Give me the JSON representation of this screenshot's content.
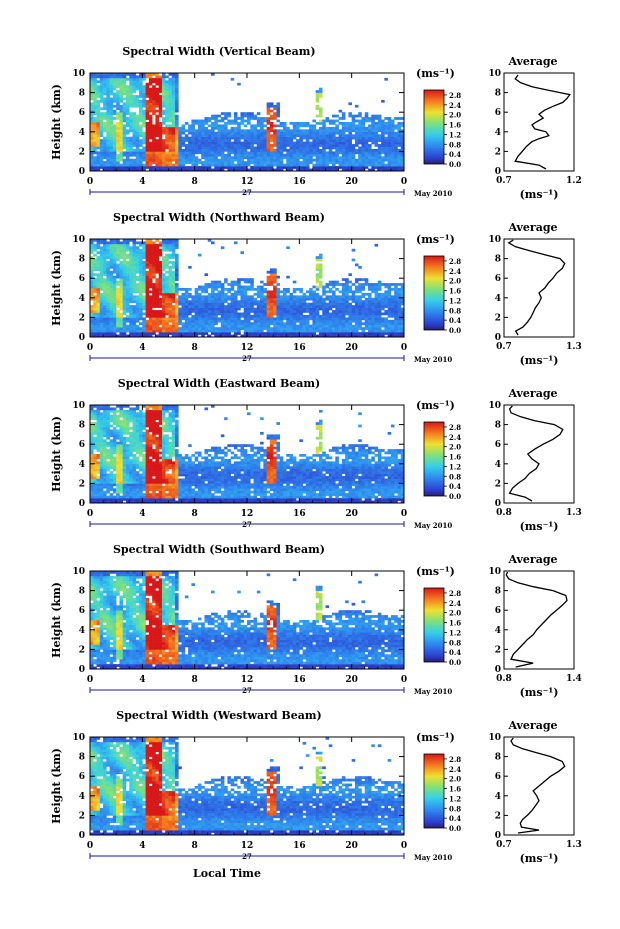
{
  "chart_data": [
    {
      "type": "heatmap",
      "title": "Spectral Width (Vertical Beam)",
      "ylabel": "Height (km)",
      "ylim": [
        0,
        10
      ],
      "yticks": [
        "0",
        "2",
        "4",
        "6",
        "8",
        "10"
      ],
      "xlim": [
        0,
        24
      ],
      "xticks": [
        "0",
        "4",
        "8",
        "12",
        "16",
        "20",
        "0"
      ],
      "day_label": "27",
      "month_label": "May 2010",
      "colorbar": {
        "unit": "(ms⁻¹)",
        "ticks": [
          "0.0",
          "0.4",
          "0.8",
          "1.2",
          "1.6",
          "2.0",
          "2.4",
          "2.8"
        ],
        "range": [
          0,
          3.0
        ]
      },
      "profile": {
        "title": "Average",
        "xlabel": "(ms⁻¹)",
        "xticks": [
          "0.7",
          "1.2"
        ],
        "xlim": [
          0.7,
          1.2
        ],
        "ylim": [
          0,
          10
        ],
        "yticks": [
          "0",
          "2",
          "4",
          "6",
          "8",
          "10"
        ],
        "points": [
          [
            0.2,
            1.0
          ],
          [
            0.6,
            0.95
          ],
          [
            1.0,
            0.78
          ],
          [
            1.5,
            0.8
          ],
          [
            2.0,
            0.83
          ],
          [
            2.5,
            0.86
          ],
          [
            3.0,
            0.9
          ],
          [
            3.3,
            0.95
          ],
          [
            3.6,
            1.02
          ],
          [
            4.0,
            1.0
          ],
          [
            4.3,
            0.92
          ],
          [
            4.7,
            0.9
          ],
          [
            5.0,
            0.93
          ],
          [
            5.4,
            0.98
          ],
          [
            5.8,
            0.95
          ],
          [
            6.2,
            0.99
          ],
          [
            6.6,
            1.05
          ],
          [
            7.0,
            1.12
          ],
          [
            7.4,
            1.15
          ],
          [
            7.8,
            1.17
          ],
          [
            8.0,
            1.1
          ],
          [
            8.3,
            1.0
          ],
          [
            8.6,
            0.9
          ],
          [
            9.0,
            0.82
          ],
          [
            9.4,
            0.78
          ],
          [
            9.8,
            0.8
          ]
        ]
      }
    },
    {
      "type": "heatmap",
      "title": "Spectral Width (Northward Beam)",
      "ylabel": "Height (km)",
      "ylim": [
        0,
        10
      ],
      "yticks": [
        "0",
        "2",
        "4",
        "6",
        "8",
        "10"
      ],
      "xlim": [
        0,
        24
      ],
      "xticks": [
        "0",
        "4",
        "8",
        "12",
        "16",
        "20",
        "0"
      ],
      "day_label": "27",
      "month_label": "May 2010",
      "colorbar": {
        "unit": "(ms⁻¹)",
        "ticks": [
          "0.0",
          "0.4",
          "0.8",
          "1.2",
          "1.6",
          "2.0",
          "2.4",
          "2.8"
        ],
        "range": [
          0,
          3.0
        ]
      },
      "profile": {
        "title": "Average",
        "xlabel": "(ms⁻¹)",
        "xticks": [
          "0.7",
          "1.3"
        ],
        "xlim": [
          0.7,
          1.3
        ],
        "ylim": [
          0,
          10
        ],
        "yticks": [
          "0",
          "2",
          "4",
          "6",
          "8",
          "10"
        ],
        "points": [
          [
            0.2,
            0.82
          ],
          [
            0.6,
            0.8
          ],
          [
            1.0,
            0.86
          ],
          [
            1.5,
            0.9
          ],
          [
            2.0,
            0.93
          ],
          [
            2.5,
            0.95
          ],
          [
            3.0,
            0.97
          ],
          [
            3.5,
            1.0
          ],
          [
            4.0,
            1.02
          ],
          [
            4.5,
            1.0
          ],
          [
            5.0,
            1.05
          ],
          [
            5.5,
            1.08
          ],
          [
            6.0,
            1.12
          ],
          [
            6.5,
            1.15
          ],
          [
            7.0,
            1.2
          ],
          [
            7.5,
            1.22
          ],
          [
            8.0,
            1.18
          ],
          [
            8.4,
            1.05
          ],
          [
            8.8,
            0.92
          ],
          [
            9.2,
            0.8
          ],
          [
            9.6,
            0.74
          ],
          [
            9.9,
            0.78
          ]
        ]
      }
    },
    {
      "type": "heatmap",
      "title": "Spectral Width (Eastward Beam)",
      "ylabel": "Height (km)",
      "ylim": [
        0,
        10
      ],
      "yticks": [
        "0",
        "2",
        "4",
        "6",
        "8",
        "10"
      ],
      "xlim": [
        0,
        24
      ],
      "xticks": [
        "0",
        "4",
        "8",
        "12",
        "16",
        "20",
        "0"
      ],
      "day_label": "27",
      "month_label": "May 2010",
      "colorbar": {
        "unit": "(ms⁻¹)",
        "ticks": [
          "0.0",
          "0.4",
          "0.8",
          "1.2",
          "1.6",
          "2.0",
          "2.4",
          "2.8"
        ],
        "range": [
          0,
          3.0
        ]
      },
      "profile": {
        "title": "Average",
        "xlabel": "(ms⁻¹)",
        "xticks": [
          "0.8",
          "1.3"
        ],
        "xlim": [
          0.8,
          1.3
        ],
        "ylim": [
          0,
          10
        ],
        "yticks": [
          "0",
          "2",
          "4",
          "6",
          "8",
          "10"
        ],
        "points": [
          [
            0.2,
            1.0
          ],
          [
            0.6,
            0.95
          ],
          [
            1.0,
            0.84
          ],
          [
            1.5,
            0.86
          ],
          [
            2.0,
            0.9
          ],
          [
            2.5,
            0.95
          ],
          [
            3.0,
            0.98
          ],
          [
            3.5,
            1.03
          ],
          [
            4.0,
            1.05
          ],
          [
            4.5,
            1.0
          ],
          [
            5.0,
            0.97
          ],
          [
            5.5,
            1.02
          ],
          [
            6.0,
            1.08
          ],
          [
            6.5,
            1.15
          ],
          [
            7.0,
            1.2
          ],
          [
            7.5,
            1.22
          ],
          [
            8.0,
            1.16
          ],
          [
            8.4,
            1.02
          ],
          [
            8.8,
            0.92
          ],
          [
            9.2,
            0.85
          ],
          [
            9.6,
            0.84
          ],
          [
            9.9,
            0.86
          ]
        ]
      }
    },
    {
      "type": "heatmap",
      "title": "Spectral Width (Southward Beam)",
      "ylabel": "Height (km)",
      "ylim": [
        0,
        10
      ],
      "yticks": [
        "0",
        "2",
        "4",
        "6",
        "8",
        "10"
      ],
      "xlim": [
        0,
        24
      ],
      "xticks": [
        "0",
        "4",
        "8",
        "12",
        "16",
        "20",
        "0"
      ],
      "day_label": "27",
      "month_label": "May 2010",
      "colorbar": {
        "unit": "(ms⁻¹)",
        "ticks": [
          "0.0",
          "0.4",
          "0.8",
          "1.2",
          "1.6",
          "2.0",
          "2.4",
          "2.8"
        ],
        "range": [
          0,
          3.0
        ]
      },
      "profile": {
        "title": "Average",
        "xlabel": "(ms⁻¹)",
        "xticks": [
          "0.8",
          "1.4"
        ],
        "xlim": [
          0.8,
          1.4
        ],
        "ylim": [
          0,
          10
        ],
        "yticks": [
          "0",
          "2",
          "4",
          "6",
          "8",
          "10"
        ],
        "points": [
          [
            0.2,
            0.9
          ],
          [
            0.6,
            1.05
          ],
          [
            1.0,
            0.86
          ],
          [
            1.5,
            0.88
          ],
          [
            2.0,
            0.92
          ],
          [
            2.5,
            0.96
          ],
          [
            3.0,
            1.0
          ],
          [
            3.5,
            1.05
          ],
          [
            4.0,
            1.08
          ],
          [
            4.5,
            1.12
          ],
          [
            5.0,
            1.16
          ],
          [
            5.5,
            1.2
          ],
          [
            6.0,
            1.25
          ],
          [
            6.5,
            1.3
          ],
          [
            7.0,
            1.34
          ],
          [
            7.5,
            1.33
          ],
          [
            8.0,
            1.22
          ],
          [
            8.4,
            1.05
          ],
          [
            8.8,
            0.92
          ],
          [
            9.2,
            0.84
          ],
          [
            9.6,
            0.82
          ],
          [
            9.9,
            0.83
          ]
        ]
      }
    },
    {
      "type": "heatmap",
      "title": "Spectral Width (Westward Beam)",
      "ylabel": "Height (km)",
      "ylim": [
        0,
        10
      ],
      "yticks": [
        "0",
        "2",
        "4",
        "6",
        "8",
        "10"
      ],
      "xlim": [
        0,
        24
      ],
      "xticks": [
        "0",
        "4",
        "8",
        "12",
        "16",
        "20",
        "0"
      ],
      "day_label": "27",
      "month_label": "May 2010",
      "xlabel": "Local Time",
      "colorbar": {
        "unit": "(ms⁻¹)",
        "ticks": [
          "0.0",
          "0.4",
          "0.8",
          "1.2",
          "1.6",
          "2.0",
          "2.4",
          "2.8"
        ],
        "range": [
          0,
          3.0
        ]
      },
      "profile": {
        "title": "Average",
        "xlabel": "(ms⁻¹)",
        "xticks": [
          "0.7",
          "1.3"
        ],
        "xlim": [
          0.7,
          1.3
        ],
        "ylim": [
          0,
          10
        ],
        "yticks": [
          "0",
          "2",
          "4",
          "6",
          "8",
          "10"
        ],
        "points": [
          [
            0.2,
            0.82
          ],
          [
            0.5,
            1.0
          ],
          [
            0.8,
            0.85
          ],
          [
            1.2,
            0.84
          ],
          [
            1.6,
            0.86
          ],
          [
            2.0,
            0.9
          ],
          [
            2.5,
            0.94
          ],
          [
            3.0,
            0.97
          ],
          [
            3.5,
            1.0
          ],
          [
            4.0,
            0.98
          ],
          [
            4.5,
            0.95
          ],
          [
            5.0,
            1.0
          ],
          [
            5.5,
            1.05
          ],
          [
            6.0,
            1.1
          ],
          [
            6.5,
            1.17
          ],
          [
            7.0,
            1.22
          ],
          [
            7.5,
            1.2
          ],
          [
            8.0,
            1.1
          ],
          [
            8.4,
            0.98
          ],
          [
            8.8,
            0.86
          ],
          [
            9.2,
            0.78
          ],
          [
            9.6,
            0.76
          ],
          [
            9.9,
            0.78
          ]
        ]
      }
    }
  ]
}
